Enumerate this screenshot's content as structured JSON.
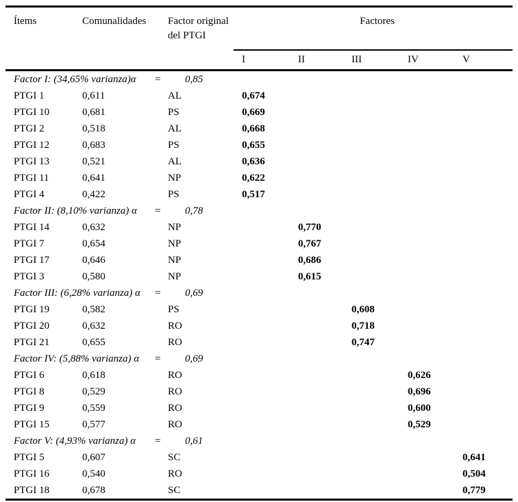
{
  "table": {
    "headers": {
      "items": "Ítems",
      "communalities": "Comunalidades",
      "original_factor": "Factor original del PTGI",
      "factors_group": "Factores",
      "factor_columns": [
        "I",
        "II",
        "III",
        "IV",
        "V"
      ]
    },
    "sections": [
      {
        "heading": {
          "label": "Factor I: (34,65% varianza)α",
          "eq": "=",
          "alpha": "0,85"
        },
        "rows": [
          {
            "item": "PTGI 1",
            "communality": "0,611",
            "original": "AL",
            "loadings": [
              "0,674",
              "",
              "",
              "",
              ""
            ]
          },
          {
            "item": "PTGI 10",
            "communality": "0,681",
            "original": "PS",
            "loadings": [
              "0,669",
              "",
              "",
              "",
              ""
            ]
          },
          {
            "item": "PTGI 2",
            "communality": "0,518",
            "original": "AL",
            "loadings": [
              "0,668",
              "",
              "",
              "",
              ""
            ]
          },
          {
            "item": "PTGI 12",
            "communality": "0,683",
            "original": "PS",
            "loadings": [
              "0,655",
              "",
              "",
              "",
              ""
            ]
          },
          {
            "item": "PTGI 13",
            "communality": "0,521",
            "original": "AL",
            "loadings": [
              "0,636",
              "",
              "",
              "",
              ""
            ]
          },
          {
            "item": "PTGI 11",
            "communality": "0,641",
            "original": "NP",
            "loadings": [
              "0,622",
              "",
              "",
              "",
              ""
            ]
          },
          {
            "item": "PTGI 4",
            "communality": "0,422",
            "original": "PS",
            "loadings": [
              "0,517",
              "",
              "",
              "",
              ""
            ]
          }
        ]
      },
      {
        "heading": {
          "label": "Factor II: (8,10% varianza) α",
          "eq": "=",
          "alpha": "0,78"
        },
        "rows": [
          {
            "item": "PTGI 14",
            "communality": "0,632",
            "original": "NP",
            "loadings": [
              "",
              "0,770",
              "",
              "",
              ""
            ]
          },
          {
            "item": "PTGI 7",
            "communality": "0,654",
            "original": "NP",
            "loadings": [
              "",
              "0,767",
              "",
              "",
              ""
            ]
          },
          {
            "item": "PTGI 17",
            "communality": "0,646",
            "original": "NP",
            "loadings": [
              "",
              "0,686",
              "",
              "",
              ""
            ]
          },
          {
            "item": "PTGI 3",
            "communality": "0,580",
            "original": "NP",
            "loadings": [
              "",
              "0,615",
              "",
              "",
              ""
            ]
          }
        ]
      },
      {
        "heading": {
          "label": "Factor III: (6,28% varianza) α",
          "eq": "=",
          "alpha": "0,69"
        },
        "rows": [
          {
            "item": "PTGI 19",
            "communality": "0,582",
            "original": "PS",
            "loadings": [
              "",
              "",
              "0,608",
              "",
              ""
            ]
          },
          {
            "item": "PTGI 20",
            "communality": "0,632",
            "original": "RO",
            "loadings": [
              "",
              "",
              "0,718",
              "",
              ""
            ]
          },
          {
            "item": "PTGI 21",
            "communality": "0,655",
            "original": "RO",
            "loadings": [
              "",
              "",
              "0,747",
              "",
              ""
            ]
          }
        ]
      },
      {
        "heading": {
          "label": "Factor IV: (5,88% varianza) α",
          "eq": "=",
          "alpha": "0,69"
        },
        "rows": [
          {
            "item": "PTGI 6",
            "communality": "0,618",
            "original": "RO",
            "loadings": [
              "",
              "",
              "",
              "0,626",
              ""
            ]
          },
          {
            "item": "PTGI 8",
            "communality": "0,529",
            "original": "RO",
            "loadings": [
              "",
              "",
              "",
              "0,696",
              ""
            ]
          },
          {
            "item": "PTGI 9",
            "communality": "0,559",
            "original": "RO",
            "loadings": [
              "",
              "",
              "",
              "0,600",
              ""
            ]
          },
          {
            "item": "PTGI 15",
            "communality": "0,577",
            "original": "RO",
            "loadings": [
              "",
              "",
              "",
              "0,529",
              ""
            ]
          }
        ]
      },
      {
        "heading": {
          "label": "Factor V: (4,93% varianza) α",
          "eq": "=",
          "alpha": "0,61"
        },
        "rows": [
          {
            "item": "PTGI 5",
            "communality": "0,607",
            "original": "SC",
            "loadings": [
              "",
              "",
              "",
              "",
              "0,641"
            ]
          },
          {
            "item": "PTGI 16",
            "communality": "0,540",
            "original": "RO",
            "loadings": [
              "",
              "",
              "",
              "",
              "0,504"
            ]
          },
          {
            "item": "PTGI 18",
            "communality": "0,678",
            "original": "SC",
            "loadings": [
              "",
              "",
              "",
              "",
              "0,779"
            ]
          }
        ]
      }
    ]
  }
}
